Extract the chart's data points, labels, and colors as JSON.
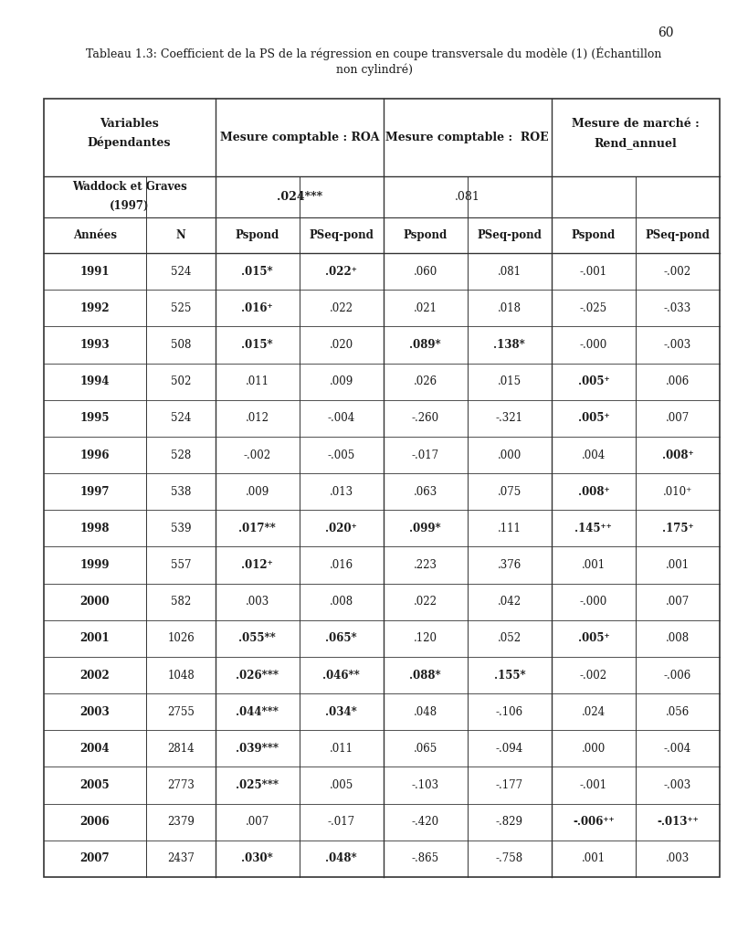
{
  "title_bold": "Tableau 1.3:",
  "title_rest": " Coefficient de la PS de la régression en coupe transversale du modèle (1) (Échantillon",
  "title_line2": "non cylindré)",
  "page_number": "60",
  "header_row1_col0": "Variables\nDépendantes",
  "header_row1_col1": "Mesure comptable : ROA",
  "header_row1_col2": "Mesure comptable :  ROE",
  "header_row1_col3": "Mesure de marché :\nRend_annuel",
  "waddock_line1": "Waddock et Graves",
  "waddock_line2": "(1997)",
  "waddock_roa": ".024***",
  "waddock_roe": ".081",
  "subheaders": [
    "Années",
    "N",
    "Pspond",
    "PSeq-pond",
    "Pspond",
    "PSeq-pond",
    "Pspond",
    "PSeq-pond"
  ],
  "data_rows": [
    [
      "1991",
      "524",
      ".015*",
      ".022⁺",
      ".060",
      ".081",
      "-.001",
      "-.002"
    ],
    [
      "1992",
      "525",
      ".016⁺",
      ".022",
      ".021",
      ".018",
      "-.025",
      "-.033"
    ],
    [
      "1993",
      "508",
      ".015*",
      ".020",
      ".089*",
      ".138*",
      "-.000",
      "-.003"
    ],
    [
      "1994",
      "502",
      ".011",
      ".009",
      ".026",
      ".015",
      ".005⁺",
      ".006"
    ],
    [
      "1995",
      "524",
      ".012",
      "-.004",
      "-.260",
      "-.321",
      ".005⁺",
      ".007"
    ],
    [
      "1996",
      "528",
      "-.002",
      "-.005",
      "-.017",
      ".000",
      ".004",
      ".008⁺"
    ],
    [
      "1997",
      "538",
      ".009",
      ".013",
      ".063",
      ".075",
      ".008⁺",
      ".010⁺"
    ],
    [
      "1998",
      "539",
      ".017**",
      ".020⁺",
      ".099*",
      ".111",
      ".145⁺⁺",
      ".175⁺"
    ],
    [
      "1999",
      "557",
      ".012⁺",
      ".016",
      ".223",
      ".376",
      ".001",
      ".001"
    ],
    [
      "2000",
      "582",
      ".003",
      ".008",
      ".022",
      ".042",
      "-.000",
      ".007"
    ],
    [
      "2001",
      "1026",
      ".055**",
      ".065*",
      ".120",
      ".052",
      ".005⁺",
      ".008"
    ],
    [
      "2002",
      "1048",
      ".026***",
      ".046**",
      ".088*",
      ".155*",
      "-.002",
      "-.006"
    ],
    [
      "2003",
      "2755",
      ".044***",
      ".034*",
      ".048",
      "-.106",
      ".024",
      ".056"
    ],
    [
      "2004",
      "2814",
      ".039***",
      ".011",
      ".065",
      "-.094",
      ".000",
      "-.004"
    ],
    [
      "2005",
      "2773",
      ".025***",
      ".005",
      "-.103",
      "-.177",
      "-.001",
      "-.003"
    ],
    [
      "2006",
      "2379",
      ".007",
      "-.017",
      "-.420",
      "-.829",
      "-.006⁺⁺",
      "-.013⁺⁺"
    ],
    [
      "2007",
      "2437",
      ".030*",
      ".048*",
      "-.865",
      "-.758",
      ".001",
      ".003"
    ]
  ],
  "bold_cells": {
    "1991": [
      2,
      3
    ],
    "1992": [
      2
    ],
    "1993": [
      2,
      4,
      5
    ],
    "1994": [
      6
    ],
    "1995": [
      6
    ],
    "1996": [
      7
    ],
    "1997": [
      6
    ],
    "1998": [
      2,
      3,
      4,
      6,
      7
    ],
    "1999": [
      2
    ],
    "2000": [],
    "2001": [
      2,
      3,
      6
    ],
    "2002": [
      2,
      3,
      4,
      5
    ],
    "2003": [
      2,
      3
    ],
    "2004": [
      2
    ],
    "2005": [
      2
    ],
    "2006": [
      6,
      7
    ],
    "2007": [
      2,
      3
    ]
  },
  "bg": "#ffffff",
  "fg": "#1a1a1a",
  "border": "#333333"
}
